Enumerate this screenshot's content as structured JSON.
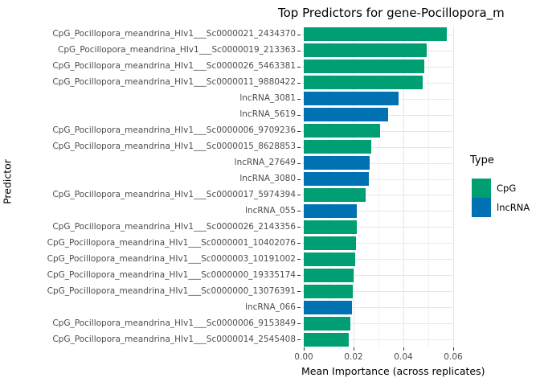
{
  "title": "Top Predictors for gene-Pocillopora_m",
  "axes": {
    "x_title": "Mean Importance (across replicates)",
    "y_title": "Predictor",
    "x_tick_labels": [
      "0.00",
      "0.02",
      "0.04",
      "0.06"
    ]
  },
  "legend": {
    "title": "Type",
    "items": [
      {
        "label": "CpG",
        "color": "#009E73"
      },
      {
        "label": "lncRNA",
        "color": "#0072B2"
      }
    ]
  },
  "colors": {
    "cpg_green": "#009E73",
    "lncrna_blue": "#0072B2",
    "grid_major": "#E4E4E4",
    "grid_minor": "#F0F0F0",
    "axis_tick": "#333333",
    "axis_text": "#4D4D4D",
    "title_text": "#000000"
  },
  "chart_data": {
    "type": "bar",
    "orientation": "horizontal",
    "title": "Top Predictors for gene-Pocillopora_m",
    "xlabel": "Mean Importance (across replicates)",
    "ylabel": "Predictor",
    "xlim": [
      0,
      0.062
    ],
    "x_tick_values": [
      0,
      0.02,
      0.04,
      0.06
    ],
    "minor_grid_step": 0.01,
    "grid": "on",
    "legend_position": "right",
    "legend_title": "Type",
    "sort": "descending top-to-bottom",
    "categories": [
      "CpG_Pocillopora_meandrina_HIv1___Sc0000021_2434370",
      "CpG_Pocillopora_meandrina_HIv1___Sc0000019_213363",
      "CpG_Pocillopora_meandrina_HIv1___Sc0000026_5463381",
      "CpG_Pocillopora_meandrina_HIv1___Sc0000011_9880422",
      "lncRNA_3081",
      "lncRNA_5619",
      "CpG_Pocillopora_meandrina_HIv1___Sc0000006_9709236",
      "CpG_Pocillopora_meandrina_HIv1___Sc0000015_8628853",
      "lncRNA_27649",
      "lncRNA_3080",
      "CpG_Pocillopora_meandrina_HIv1___Sc0000017_5974394",
      "lncRNA_055",
      "CpG_Pocillopora_meandrina_HIv1___Sc0000026_2143356",
      "CpG_Pocillopora_meandrina_HIv1___Sc0000001_10402076",
      "CpG_Pocillopora_meandrina_HIv1___Sc0000003_10191002",
      "CpG_Pocillopora_meandrina_HIv1___Sc0000000_19335174",
      "CpG_Pocillopora_meandrina_HIv1___Sc0000000_13076391",
      "lncRNA_066",
      "CpG_Pocillopora_meandrina_HIv1___Sc0000006_9153849",
      "CpG_Pocillopora_meandrina_HIv1___Sc0000014_2545408"
    ],
    "values": [
      0.0575,
      0.0495,
      0.0483,
      0.0476,
      0.038,
      0.0338,
      0.0306,
      0.0272,
      0.0266,
      0.0262,
      0.0248,
      0.0214,
      0.0213,
      0.0209,
      0.0205,
      0.0201,
      0.0197,
      0.0192,
      0.0187,
      0.0182
    ],
    "types": [
      "CpG",
      "CpG",
      "CpG",
      "CpG",
      "lncRNA",
      "lncRNA",
      "CpG",
      "CpG",
      "lncRNA",
      "lncRNA",
      "CpG",
      "lncRNA",
      "CpG",
      "CpG",
      "CpG",
      "CpG",
      "CpG",
      "lncRNA",
      "CpG",
      "CpG"
    ]
  }
}
